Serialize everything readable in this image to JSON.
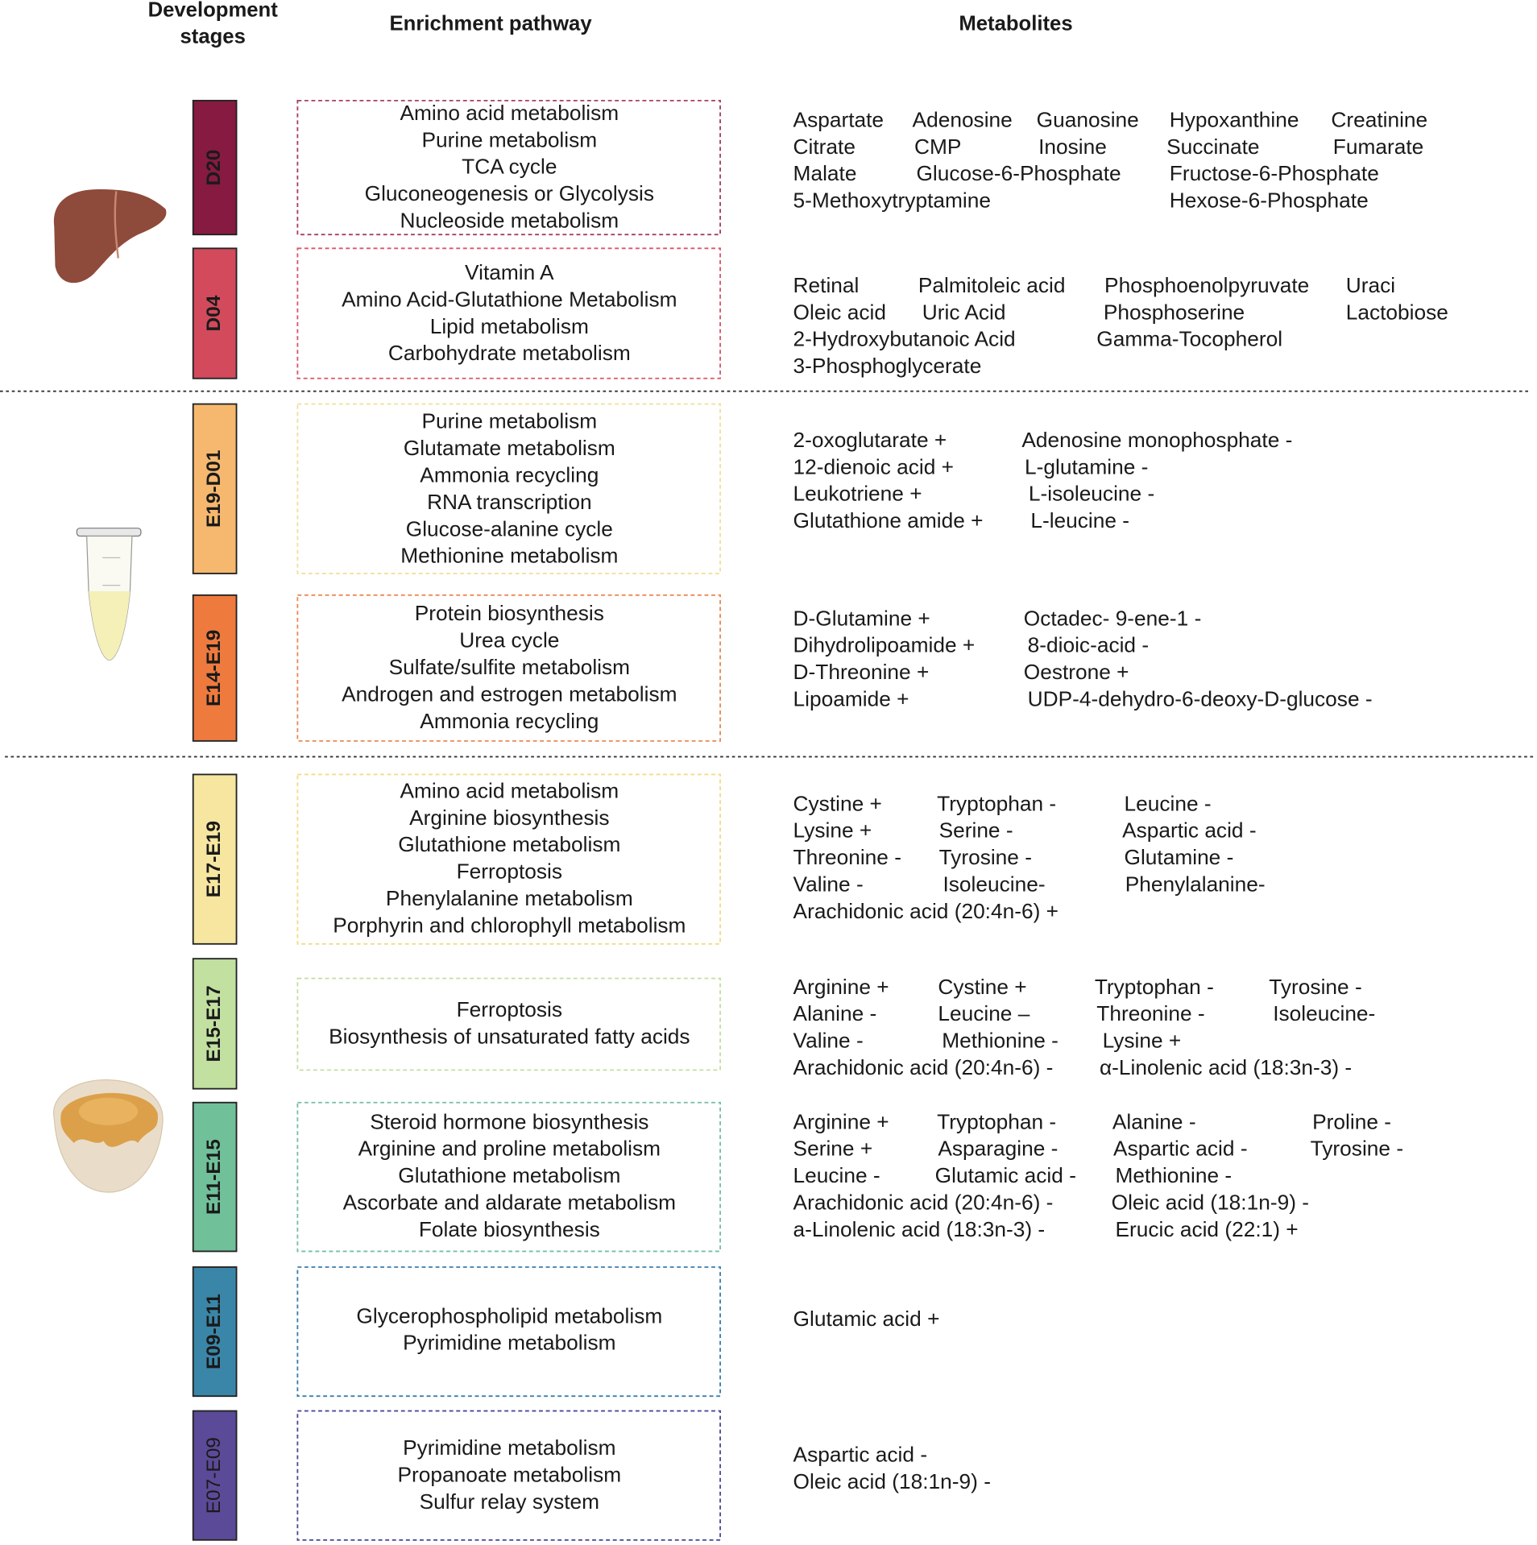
{
  "header": {
    "stages": [
      "Development",
      "stages"
    ],
    "pathway": "Enrichment pathway",
    "metabolites": "Metabolites"
  },
  "stages": [
    {
      "label": "D20",
      "color": "#861a40",
      "border": "#a8405a",
      "pathways": [
        "Amino acid metabolism",
        "Purine metabolism",
        "TCA cycle",
        "Gluconeogenesis or Glycolysis",
        "Nucleoside metabolism"
      ],
      "metabolites": [
        [
          "Aspartate",
          "Adenosine",
          "Guanosine",
          "Hypoxanthine",
          "Creatinine"
        ],
        [
          "Citrate",
          "CMP",
          "Inosine",
          "Succinate",
          "Fumarate"
        ],
        [
          "Malate",
          "Glucose-6-Phosphate",
          "Fructose-6-Phosphate"
        ],
        [
          "5-Methoxytryptamine",
          "Hexose-6-Phosphate"
        ]
      ]
    },
    {
      "label": "D04",
      "color": "#d24a5c",
      "border": "#d9576a",
      "pathways": [
        "Vitamin A",
        "Amino Acid-Glutathione Metabolism",
        "Lipid metabolism",
        "Carbohydrate metabolism"
      ],
      "metabolites": [
        [
          "Retinal",
          "Palmitoleic acid",
          "Phosphoenolpyruvate",
          "Uraci"
        ],
        [
          "Oleic acid",
          "Uric Acid",
          "Phosphoserine",
          "Lactobiose"
        ],
        [
          "2-Hydroxybutanoic Acid",
          "Gamma-Tocopherol"
        ],
        [
          "3-Phosphoglycerate"
        ]
      ]
    },
    {
      "label": "E19-D01",
      "color": "#f5b86e",
      "border": "#f1e09a",
      "pathways": [
        "Purine metabolism",
        "Glutamate metabolism",
        "Ammonia recycling",
        "RNA transcription",
        "Glucose-alanine cycle",
        "Methionine metabolism"
      ],
      "metabolites": [
        [
          "2-oxoglutarate +",
          "Adenosine monophosphate -"
        ],
        [
          "12-dienoic acid +",
          "L-glutamine -"
        ],
        [
          "Leukotriene +",
          "L-isoleucine -"
        ],
        [
          "Glutathione amide +",
          "L-leucine -"
        ]
      ]
    },
    {
      "label": "E14-E19",
      "color": "#ee7a3e",
      "border": "#e88a55",
      "pathways": [
        "Protein biosynthesis",
        "Urea cycle",
        "Sulfate/sulfite metabolism",
        "Androgen and estrogen metabolism",
        "Ammonia recycling"
      ],
      "metabolites": [
        [
          "D-Glutamine +",
          "Octadec- 9-ene-1 -"
        ],
        [
          "Dihydrolipoamide +",
          "8-dioic-acid -"
        ],
        [
          "D-Threonine +",
          "Oestrone +"
        ],
        [
          "Lipoamide +",
          "UDP-4-dehydro-6-deoxy-D-glucose -"
        ]
      ]
    },
    {
      "label": "E17-E19",
      "color": "#f6e6a0",
      "border": "#f1dc86",
      "pathways": [
        "Amino acid metabolism",
        "Arginine biosynthesis",
        "Glutathione metabolism",
        "Ferroptosis",
        "Phenylalanine metabolism",
        "Porphyrin and chlorophyll metabolism"
      ],
      "metabolites": [
        [
          "Cystine +",
          "Tryptophan -",
          "Leucine -"
        ],
        [
          "Lysine +",
          "Serine -",
          "Aspartic acid -"
        ],
        [
          "Threonine -",
          "Tyrosine -",
          "Glutamine -"
        ],
        [
          "Valine -",
          "Isoleucine-",
          "Phenylalanine-"
        ],
        [
          "Arachidonic acid (20:4n-6) +"
        ]
      ]
    },
    {
      "label": "E15-E17",
      "color": "#c2e0a0",
      "border": "#c3dfa0",
      "pathways": [
        "Ferroptosis",
        "Biosynthesis of unsaturated fatty acids"
      ],
      "metabolites": [
        [
          "Arginine +",
          "Cystine +",
          "Tryptophan -",
          "Tyrosine -"
        ],
        [
          "Alanine -",
          "Leucine –",
          "Threonine -",
          "Isoleucine-"
        ],
        [
          "Valine -",
          "Methionine -",
          "Lysine +"
        ],
        [
          "Arachidonic acid (20:4n-6) -",
          "α-Linolenic acid (18:3n-3) -"
        ]
      ]
    },
    {
      "label": "E11-E15",
      "color": "#70c09a",
      "border": "#74c0a2",
      "pathways": [
        "Steroid hormone biosynthesis",
        "Arginine and proline metabolism",
        "Glutathione metabolism",
        "Ascorbate and aldarate metabolism",
        "Folate biosynthesis"
      ],
      "metabolites": [
        [
          "Arginine +",
          "Tryptophan -",
          "Alanine -",
          "Proline -"
        ],
        [
          "Serine +",
          "Asparagine -",
          "Aspartic acid -",
          "Tyrosine -"
        ],
        [
          "Leucine -",
          "Glutamic acid -",
          "Methionine -"
        ],
        [
          "Arachidonic acid (20:4n-6) -",
          "Oleic acid (18:1n-9) -"
        ],
        [
          "a-Linolenic acid (18:3n-3) -",
          "Erucic acid (22:1) +"
        ]
      ]
    },
    {
      "label": "E09-E11",
      "color": "#3a86a8",
      "border": "#3a7fb0",
      "pathways": [
        "Glycerophospholipid metabolism",
        "Pyrimidine metabolism"
      ],
      "metabolites": [
        [
          "Glutamic acid +"
        ]
      ]
    },
    {
      "label": "E07-E09",
      "color": "#5b4a97",
      "border": "#4a4a9a",
      "pathways": [
        "Pyrimidine metabolism",
        "Propanoate metabolism",
        "Sulfur relay system"
      ],
      "metabolites": [
        [
          "Aspartic acid -"
        ],
        [
          "Oleic acid (18:1n-9) -"
        ]
      ]
    }
  ]
}
